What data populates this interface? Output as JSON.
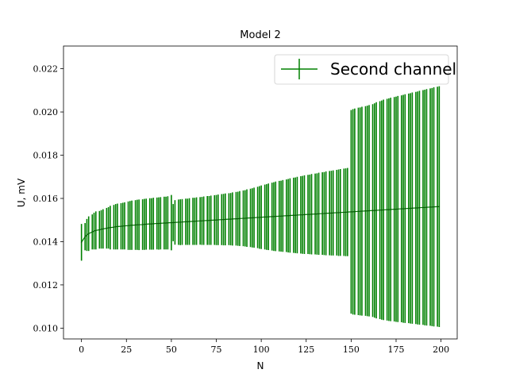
{
  "chart_data": {
    "type": "errorbar",
    "title": "Model 2",
    "xlabel": "N",
    "ylabel": "U, mV",
    "xlim": [
      -10,
      209
    ],
    "ylim": [
      0.0095,
      0.02305
    ],
    "xticks": [
      0,
      25,
      50,
      75,
      100,
      125,
      150,
      175,
      200
    ],
    "yticks": [
      0.01,
      0.012,
      0.014,
      0.016,
      0.018,
      0.02,
      0.022
    ],
    "ytick_labels": [
      "0.010",
      "0.012",
      "0.014",
      "0.016",
      "0.018",
      "0.020",
      "0.022"
    ],
    "grid": false,
    "legend_position": "top-right",
    "color": "#008000",
    "series": [
      {
        "name": "Second channel",
        "x": [
          0,
          2,
          3,
          4,
          6,
          7,
          8,
          10,
          11,
          12,
          14,
          15,
          16,
          18,
          19,
          20,
          22,
          23,
          24,
          26,
          27,
          28,
          30,
          31,
          32,
          34,
          35,
          36,
          38,
          39,
          40,
          42,
          43,
          44,
          46,
          47,
          48,
          50,
          51,
          52,
          54,
          55,
          56,
          58,
          59,
          60,
          62,
          63,
          64,
          66,
          67,
          68,
          70,
          71,
          72,
          74,
          75,
          76,
          78,
          79,
          80,
          82,
          83,
          84,
          86,
          87,
          88,
          90,
          91,
          92,
          94,
          95,
          96,
          98,
          99,
          100,
          102,
          103,
          104,
          106,
          107,
          108,
          110,
          111,
          112,
          114,
          115,
          116,
          118,
          119,
          120,
          122,
          123,
          124,
          126,
          127,
          128,
          130,
          131,
          132,
          134,
          135,
          136,
          138,
          139,
          140,
          142,
          143,
          144,
          146,
          147,
          148,
          150,
          151,
          152,
          154,
          155,
          156,
          158,
          159,
          160,
          162,
          163,
          164,
          166,
          167,
          168,
          170,
          171,
          172,
          174,
          175,
          176,
          178,
          179,
          180,
          182,
          183,
          184,
          186,
          187,
          188,
          190,
          191,
          192,
          194,
          195,
          196,
          198,
          199
        ],
        "y": [
          0.01397,
          0.01423,
          0.01431,
          0.01437,
          0.01445,
          0.01449,
          0.01452,
          0.01455,
          0.01457,
          0.01459,
          0.01462,
          0.01464,
          0.01465,
          0.01467,
          0.01469,
          0.0147,
          0.01471,
          0.01472,
          0.01473,
          0.01474,
          0.01475,
          0.01476,
          0.01477,
          0.01478,
          0.01478,
          0.01479,
          0.0148,
          0.01481,
          0.01482,
          0.01482,
          0.01483,
          0.01484,
          0.01484,
          0.01485,
          0.01486,
          0.01486,
          0.01487,
          0.01488,
          0.01488,
          0.01489,
          0.0149,
          0.0149,
          0.01491,
          0.01492,
          0.01492,
          0.01493,
          0.01494,
          0.01494,
          0.01495,
          0.01496,
          0.01496,
          0.01497,
          0.01498,
          0.01498,
          0.01499,
          0.015,
          0.015,
          0.01501,
          0.01502,
          0.01502,
          0.01503,
          0.01504,
          0.01504,
          0.01505,
          0.01506,
          0.01506,
          0.01507,
          0.01508,
          0.01508,
          0.01509,
          0.0151,
          0.0151,
          0.01511,
          0.01512,
          0.01512,
          0.01513,
          0.01514,
          0.01514,
          0.01515,
          0.01516,
          0.01516,
          0.01517,
          0.01518,
          0.01518,
          0.01519,
          0.0152,
          0.0152,
          0.01521,
          0.01522,
          0.01522,
          0.01523,
          0.01524,
          0.01524,
          0.01525,
          0.01526,
          0.01526,
          0.01527,
          0.01528,
          0.01528,
          0.01529,
          0.0153,
          0.0153,
          0.01531,
          0.01532,
          0.01532,
          0.01533,
          0.01534,
          0.01534,
          0.01535,
          0.01536,
          0.01536,
          0.01537,
          0.01538,
          0.01538,
          0.01539,
          0.0154,
          0.0154,
          0.01541,
          0.01542,
          0.01542,
          0.01543,
          0.01544,
          0.01544,
          0.01545,
          0.01546,
          0.01546,
          0.01547,
          0.01548,
          0.01548,
          0.01549,
          0.0155,
          0.0155,
          0.01551,
          0.01552,
          0.01552,
          0.01553,
          0.01554,
          0.01554,
          0.01555,
          0.01556,
          0.01556,
          0.01557,
          0.01558,
          0.01558,
          0.01559,
          0.0156,
          0.0156,
          0.01561,
          0.01562,
          0.01562
        ],
        "yerr": [
          0.00085,
          0.00063,
          0.00074,
          0.0008,
          0.00081,
          0.00085,
          0.00088,
          0.00087,
          0.00089,
          0.00091,
          0.00094,
          0.00096,
          0.00101,
          0.00103,
          0.00105,
          0.00106,
          0.00107,
          0.00108,
          0.00109,
          0.00112,
          0.00113,
          0.00114,
          0.00115,
          0.00116,
          0.00117,
          0.00117,
          0.00118,
          0.00118,
          0.00119,
          0.00119,
          0.0012,
          0.0012,
          0.00121,
          0.00121,
          0.00122,
          0.00122,
          0.00123,
          0.00128,
          0.00086,
          0.00103,
          0.00105,
          0.00106,
          0.00106,
          0.00107,
          0.00107,
          0.00108,
          0.00109,
          0.00109,
          0.0011,
          0.0011,
          0.00111,
          0.00112,
          0.00113,
          0.00113,
          0.00114,
          0.00115,
          0.00116,
          0.00117,
          0.00118,
          0.00119,
          0.0012,
          0.0012,
          0.00121,
          0.00123,
          0.00124,
          0.00125,
          0.00127,
          0.00129,
          0.0013,
          0.00133,
          0.00135,
          0.00137,
          0.00139,
          0.00142,
          0.00145,
          0.00147,
          0.0015,
          0.00152,
          0.00154,
          0.00157,
          0.00159,
          0.00161,
          0.00163,
          0.00164,
          0.00166,
          0.00168,
          0.0017,
          0.00172,
          0.00174,
          0.00175,
          0.00177,
          0.00179,
          0.0018,
          0.00182,
          0.00183,
          0.00184,
          0.00186,
          0.00187,
          0.00188,
          0.0019,
          0.00191,
          0.00192,
          0.00194,
          0.00195,
          0.00196,
          0.00197,
          0.00198,
          0.002,
          0.00201,
          0.00202,
          0.00203,
          0.00204,
          0.00471,
          0.00475,
          0.00477,
          0.0048,
          0.00481,
          0.00483,
          0.00485,
          0.00487,
          0.00489,
          0.00492,
          0.00496,
          0.005,
          0.00504,
          0.00507,
          0.0051,
          0.00513,
          0.00515,
          0.00517,
          0.00519,
          0.00521,
          0.00523,
          0.00525,
          0.00527,
          0.00529,
          0.00531,
          0.00533,
          0.00535,
          0.00537,
          0.00539,
          0.00541,
          0.00543,
          0.00545,
          0.00547,
          0.00549,
          0.00551,
          0.00553,
          0.00555,
          0.00557
        ]
      }
    ]
  }
}
